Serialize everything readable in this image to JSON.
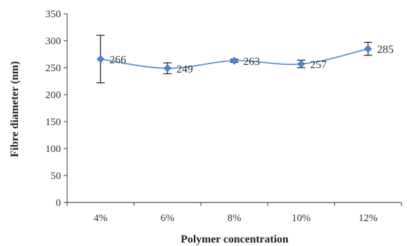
{
  "chart_data": {
    "type": "line",
    "title": "",
    "xlabel": "Polymer concentration",
    "ylabel": "Fibre diameter (nm)",
    "categories": [
      "4%",
      "6%",
      "8%",
      "10%",
      "12%"
    ],
    "series": [
      {
        "values": [
          266,
          249,
          263,
          257,
          285
        ],
        "error": [
          44,
          10,
          3,
          7,
          12
        ],
        "data_labels": [
          "266",
          "249",
          "263",
          "257",
          "285"
        ],
        "color": "#4f86d0"
      }
    ],
    "ylim": [
      0,
      350
    ],
    "yticks": [
      0,
      50,
      100,
      150,
      200,
      250,
      300,
      350
    ],
    "grid": false,
    "legend": "none"
  }
}
